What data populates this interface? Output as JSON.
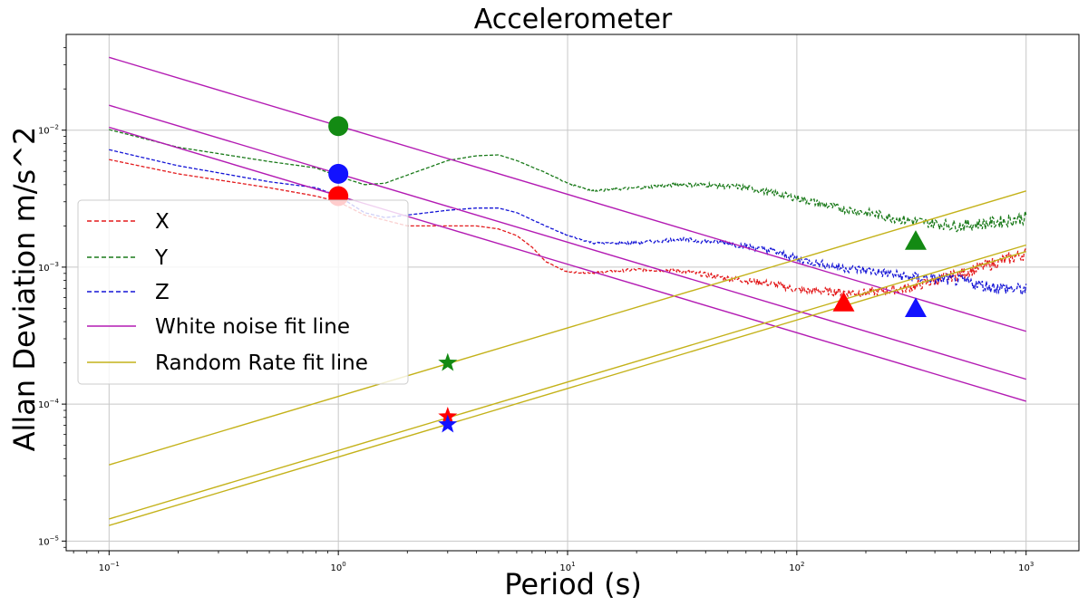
{
  "chart_data": {
    "type": "line",
    "title": "Accelerometer",
    "xlabel": "Period (s)",
    "ylabel": "Allan Deviation m/s^2",
    "xscale": "log",
    "yscale": "log",
    "xlim": [
      0.065,
      1700
    ],
    "ylim": [
      8.5e-06,
      0.05
    ],
    "grid": true,
    "x_ticks": [
      {
        "value": 0.1,
        "base": "10",
        "exp": "−1"
      },
      {
        "value": 1,
        "base": "10",
        "exp": "0"
      },
      {
        "value": 10,
        "base": "10",
        "exp": "1"
      },
      {
        "value": 100,
        "base": "10",
        "exp": "2"
      },
      {
        "value": 1000,
        "base": "10",
        "exp": "3"
      }
    ],
    "y_ticks": [
      {
        "value": 1e-05,
        "base": "10",
        "exp": "−5"
      },
      {
        "value": 0.0001,
        "base": "10",
        "exp": "−4"
      },
      {
        "value": 0.001,
        "base": "10",
        "exp": "−3"
      },
      {
        "value": 0.01,
        "base": "10",
        "exp": "−2"
      }
    ],
    "legend": {
      "position": "center-left",
      "entries": [
        {
          "label": "X",
          "color": "#e31a1c",
          "style": "dashed"
        },
        {
          "label": "Y",
          "color": "#1a7a1a",
          "style": "dashed"
        },
        {
          "label": "Z",
          "color": "#1515d6",
          "style": "dashed"
        },
        {
          "label": "White noise fit line",
          "color": "#b31bb3",
          "style": "solid"
        },
        {
          "label": "Random Rate fit line",
          "color": "#c4b21a",
          "style": "solid"
        }
      ]
    },
    "series": [
      {
        "name": "X",
        "color": "#e31a1c",
        "style": "dashed",
        "x": [
          0.1,
          0.2,
          0.5,
          0.8,
          1.0,
          1.3,
          1.6,
          2.0,
          3.0,
          4.0,
          5.0,
          6.0,
          7.0,
          8.0,
          10,
          13,
          20,
          30,
          50,
          80,
          100,
          150,
          200,
          300,
          500,
          700,
          1000
        ],
        "y": [
          0.0061,
          0.0048,
          0.0038,
          0.0033,
          0.003,
          0.0024,
          0.0022,
          0.002,
          0.002,
          0.002,
          0.0019,
          0.0017,
          0.0014,
          0.0011,
          0.00092,
          0.00091,
          0.00096,
          0.00095,
          0.00083,
          0.00075,
          0.00068,
          0.00066,
          0.00065,
          0.0007,
          0.00088,
          0.00105,
          0.00126
        ]
      },
      {
        "name": "Y",
        "color": "#1a7a1a",
        "style": "dashed",
        "x": [
          0.1,
          0.2,
          0.5,
          0.8,
          1.0,
          1.3,
          1.6,
          2.0,
          3.0,
          4.0,
          5.0,
          6.0,
          8.0,
          10,
          13,
          20,
          30,
          40,
          60,
          100,
          150,
          200,
          300,
          500,
          700,
          1000
        ],
        "y": [
          0.0101,
          0.0075,
          0.0059,
          0.0053,
          0.0046,
          0.004,
          0.0041,
          0.0047,
          0.006,
          0.0065,
          0.0066,
          0.006,
          0.0049,
          0.0041,
          0.0036,
          0.0038,
          0.004,
          0.004,
          0.0038,
          0.0032,
          0.0027,
          0.0025,
          0.0022,
          0.002,
          0.0021,
          0.0023
        ]
      },
      {
        "name": "Z",
        "color": "#1515d6",
        "style": "dashed",
        "x": [
          0.1,
          0.2,
          0.5,
          0.8,
          1.0,
          1.3,
          1.6,
          2.0,
          3.0,
          4.0,
          5.0,
          6.0,
          8.0,
          10,
          13,
          20,
          30,
          50,
          80,
          100,
          150,
          200,
          300,
          500,
          700,
          1000
        ],
        "y": [
          0.0072,
          0.0055,
          0.0042,
          0.0038,
          0.0033,
          0.0025,
          0.0023,
          0.0024,
          0.0026,
          0.0027,
          0.0027,
          0.0025,
          0.002,
          0.0017,
          0.0015,
          0.0015,
          0.0016,
          0.0015,
          0.0013,
          0.00115,
          0.001,
          0.00095,
          0.00085,
          0.0008,
          0.00072,
          0.00068
        ]
      }
    ],
    "white_noise_fit_lines": [
      {
        "name": "White noise fit line (Y)",
        "x": [
          0.1,
          1000
        ],
        "y": [
          0.034,
          0.00034
        ]
      },
      {
        "name": "White noise fit line (Z)",
        "x": [
          0.1,
          1000
        ],
        "y": [
          0.0152,
          0.000152
        ]
      },
      {
        "name": "White noise fit line (X)",
        "x": [
          0.1,
          1000
        ],
        "y": [
          0.0105,
          0.000105
        ]
      }
    ],
    "random_rate_fit_lines": [
      {
        "name": "Random Rate fit line (Y)",
        "x": [
          0.1,
          1000
        ],
        "y": [
          3.6e-05,
          0.0036
        ]
      },
      {
        "name": "Random Rate fit line (X)",
        "x": [
          0.1,
          1000
        ],
        "y": [
          1.45e-05,
          0.00145
        ]
      },
      {
        "name": "Random Rate fit line (Z)",
        "x": [
          0.1,
          1000
        ],
        "y": [
          1.3e-05,
          0.0013
        ]
      }
    ],
    "markers": [
      {
        "name": "circle-y",
        "shape": "circle",
        "color": "#138a13",
        "x": 1,
        "y": 0.0107
      },
      {
        "name": "circle-z",
        "shape": "circle",
        "color": "#1212ff",
        "x": 1,
        "y": 0.0048
      },
      {
        "name": "circle-x",
        "shape": "circle",
        "color": "#ff0000",
        "x": 1,
        "y": 0.0033
      },
      {
        "name": "star-y",
        "shape": "star",
        "color": "#138a13",
        "x": 3,
        "y": 0.0002
      },
      {
        "name": "star-x",
        "shape": "star",
        "color": "#ff0000",
        "x": 3,
        "y": 8.1e-05
      },
      {
        "name": "star-z",
        "shape": "star",
        "color": "#1212ff",
        "x": 3,
        "y": 7.1e-05
      },
      {
        "name": "triangle-y",
        "shape": "triangle",
        "color": "#138a13",
        "x": 330,
        "y": 0.00155
      },
      {
        "name": "triangle-x",
        "shape": "triangle",
        "color": "#ff0000",
        "x": 160,
        "y": 0.00055
      },
      {
        "name": "triangle-z",
        "shape": "triangle",
        "color": "#1212ff",
        "x": 330,
        "y": 0.0005
      }
    ],
    "colors": {
      "white_fit": "#b31bb3",
      "random_fit": "#c4b21a",
      "grid": "#c8c8c8",
      "axis": "#000000"
    }
  }
}
